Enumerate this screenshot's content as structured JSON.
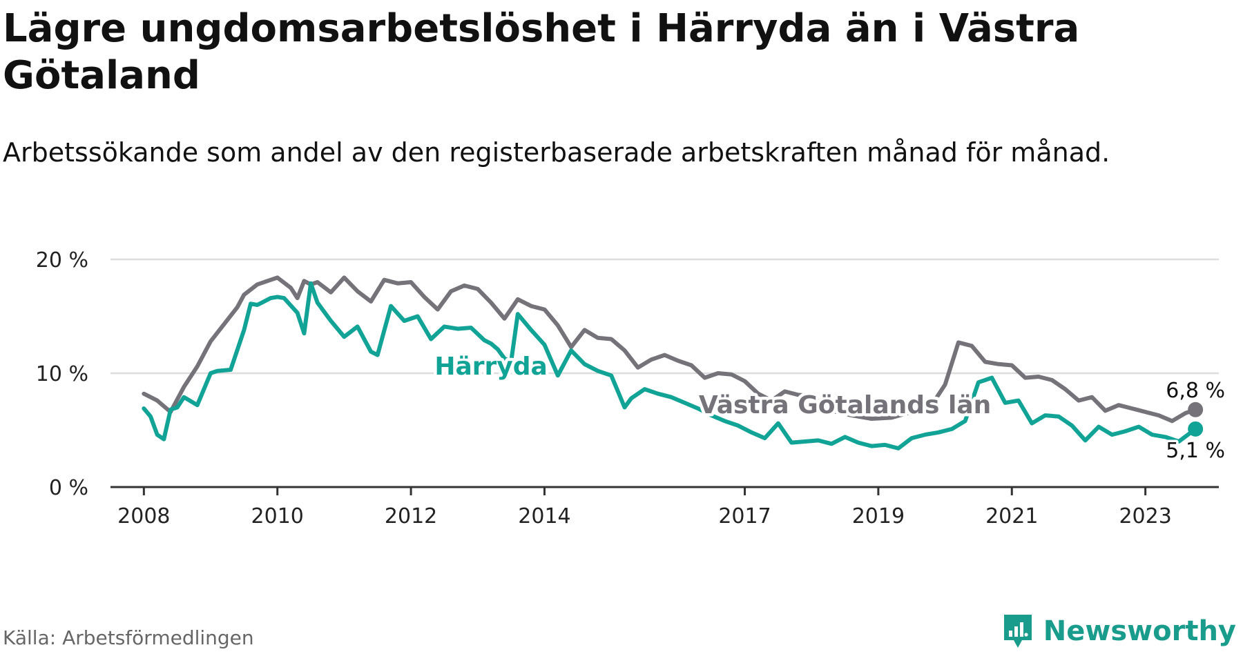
{
  "header": {
    "title": "Lägre ungdomsarbetslöshet i Härryda än i Västra Götaland",
    "subtitle": "Arbetssökande som andel av den registerbaserade arbetskraften månad för månad."
  },
  "footer": {
    "source": "Källa: Arbetsförmedlingen",
    "brand": "Newsworthy"
  },
  "colors": {
    "harryda": "#12a397",
    "vgl": "#75727a",
    "grid": "#dddddd",
    "axis": "#333333"
  },
  "chart_data": {
    "type": "line",
    "title": "Lägre ungdomsarbetslöshet i Härryda än i Västra Götaland",
    "xlabel": "",
    "ylabel": "",
    "x_unit": "year",
    "xlim": [
      2007.5,
      2024.1
    ],
    "ylim": [
      0,
      20
    ],
    "y_ticks": [
      0,
      10,
      20
    ],
    "y_tick_labels": [
      "0 %",
      "10 %",
      "20 %"
    ],
    "x_ticks": [
      2008,
      2010,
      2012,
      2014,
      2017,
      2019,
      2021,
      2023
    ],
    "x_tick_labels": [
      "2008",
      "2010",
      "2012",
      "2014",
      "2017",
      "2019",
      "2021",
      "2023"
    ],
    "grid": true,
    "series": [
      {
        "name": "Västra Götalands län",
        "label": "Västra Götalands län",
        "end_label": "6,8 %",
        "color": "#75727a",
        "x": [
          2008.0,
          2008.2,
          2008.4,
          2008.6,
          2008.8,
          2009.0,
          2009.2,
          2009.4,
          2009.5,
          2009.7,
          2009.9,
          2010.0,
          2010.2,
          2010.3,
          2010.4,
          2010.5,
          2010.6,
          2010.8,
          2011.0,
          2011.2,
          2011.4,
          2011.6,
          2011.8,
          2012.0,
          2012.2,
          2012.4,
          2012.6,
          2012.8,
          2013.0,
          2013.2,
          2013.4,
          2013.6,
          2013.8,
          2014.0,
          2014.2,
          2014.4,
          2014.6,
          2014.8,
          2015.0,
          2015.2,
          2015.4,
          2015.6,
          2015.8,
          2016.0,
          2016.2,
          2016.4,
          2016.6,
          2016.8,
          2017.0,
          2017.2,
          2017.4,
          2017.6,
          2017.8,
          2018.0,
          2018.3,
          2018.6,
          2018.9,
          2019.2,
          2019.5,
          2019.8,
          2020.0,
          2020.2,
          2020.4,
          2020.6,
          2020.8,
          2021.0,
          2021.2,
          2021.4,
          2021.6,
          2021.8,
          2022.0,
          2022.2,
          2022.4,
          2022.6,
          2022.8,
          2023.0,
          2023.2,
          2023.4,
          2023.6,
          2023.75
        ],
        "y": [
          8.2,
          7.6,
          6.6,
          8.8,
          10.6,
          12.8,
          14.3,
          15.8,
          16.9,
          17.8,
          18.2,
          18.4,
          17.5,
          16.6,
          18.1,
          17.8,
          18.0,
          17.1,
          18.4,
          17.2,
          16.3,
          18.2,
          17.9,
          18.0,
          16.7,
          15.6,
          17.2,
          17.7,
          17.4,
          16.2,
          14.8,
          16.5,
          15.9,
          15.6,
          14.2,
          12.3,
          13.8,
          13.1,
          13.0,
          12.0,
          10.5,
          11.2,
          11.6,
          11.1,
          10.7,
          9.6,
          10.0,
          9.9,
          9.3,
          8.2,
          7.6,
          8.4,
          8.1,
          8.0,
          6.7,
          6.3,
          6.0,
          6.1,
          6.6,
          7.2,
          9.0,
          12.7,
          12.4,
          11.0,
          10.8,
          10.7,
          9.6,
          9.7,
          9.4,
          8.6,
          7.6,
          7.9,
          6.7,
          7.2,
          6.9,
          6.6,
          6.3,
          5.8,
          6.5,
          6.8
        ]
      },
      {
        "name": "Härryda",
        "label": "Härryda",
        "end_label": "5,1 %",
        "color": "#12a397",
        "x": [
          2008.0,
          2008.1,
          2008.2,
          2008.3,
          2008.4,
          2008.5,
          2008.6,
          2008.8,
          2009.0,
          2009.1,
          2009.3,
          2009.5,
          2009.6,
          2009.7,
          2009.9,
          2010.0,
          2010.1,
          2010.3,
          2010.4,
          2010.5,
          2010.6,
          2010.8,
          2011.0,
          2011.2,
          2011.4,
          2011.5,
          2011.7,
          2011.9,
          2012.1,
          2012.3,
          2012.5,
          2012.7,
          2012.9,
          2013.1,
          2013.2,
          2013.3,
          2013.4,
          2013.5,
          2013.6,
          2013.8,
          2014.0,
          2014.2,
          2014.4,
          2014.6,
          2014.8,
          2015.0,
          2015.2,
          2015.3,
          2015.5,
          2015.7,
          2015.9,
          2016.1,
          2016.3,
          2016.5,
          2016.7,
          2016.9,
          2017.1,
          2017.3,
          2017.5,
          2017.7,
          2017.9,
          2018.1,
          2018.3,
          2018.5,
          2018.7,
          2018.9,
          2019.1,
          2019.3,
          2019.5,
          2019.7,
          2019.9,
          2020.1,
          2020.3,
          2020.5,
          2020.7,
          2020.9,
          2021.1,
          2021.3,
          2021.5,
          2021.7,
          2021.9,
          2022.1,
          2022.3,
          2022.5,
          2022.7,
          2022.9,
          2023.1,
          2023.3,
          2023.5,
          2023.75
        ],
        "y": [
          6.9,
          6.2,
          4.6,
          4.2,
          6.8,
          7.0,
          7.9,
          7.2,
          10.0,
          10.2,
          10.3,
          13.8,
          16.1,
          16.0,
          16.6,
          16.7,
          16.6,
          15.3,
          13.5,
          17.9,
          16.2,
          14.6,
          13.2,
          14.1,
          11.9,
          11.6,
          15.9,
          14.6,
          15.0,
          13.0,
          14.1,
          13.9,
          14.0,
          12.9,
          12.6,
          12.1,
          11.3,
          11.0,
          15.2,
          13.8,
          12.5,
          9.8,
          12.0,
          10.8,
          10.2,
          9.8,
          7.0,
          7.8,
          8.6,
          8.2,
          7.9,
          7.4,
          6.9,
          6.3,
          5.8,
          5.4,
          4.8,
          4.3,
          5.6,
          3.9,
          4.0,
          4.1,
          3.8,
          4.4,
          3.9,
          3.6,
          3.7,
          3.4,
          4.3,
          4.6,
          4.8,
          5.1,
          5.8,
          9.2,
          9.6,
          7.4,
          7.6,
          5.6,
          6.3,
          6.2,
          5.4,
          4.1,
          5.3,
          4.6,
          4.9,
          5.3,
          4.6,
          4.4,
          4.0,
          5.1
        ]
      }
    ],
    "annotations": [
      {
        "text": "Härryda",
        "series": "Härryda",
        "x": 2013.2,
        "y": 10.6
      },
      {
        "text": "Västra Götalands län",
        "series": "Västra Götalands län",
        "x": 2018.5,
        "y": 7.2
      }
    ]
  }
}
